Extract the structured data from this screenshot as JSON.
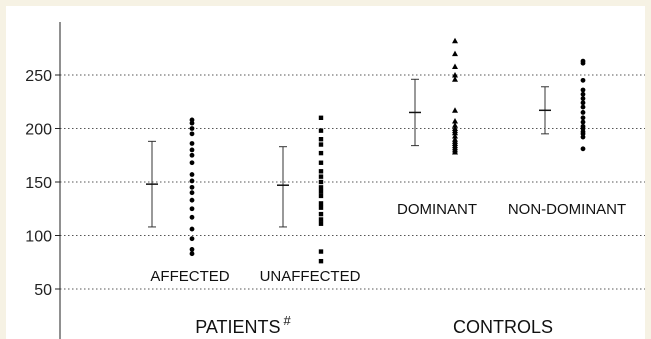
{
  "chart_data": {
    "type": "scatter",
    "title": "",
    "xlabel": "",
    "ylabel": "",
    "ylim": [
      20,
      295
    ],
    "yticks": [
      50,
      100,
      150,
      200,
      250
    ],
    "grid": true,
    "grid_style": "dotted horizontal",
    "panel_labels": [
      {
        "text": "PATIENTS",
        "superscript": "#"
      },
      {
        "text": "CONTROLS",
        "superscript": ""
      }
    ],
    "groups": [
      {
        "label": "AFFECTED",
        "panel": "PATIENTS",
        "mean": 148,
        "err_low": 108,
        "err_high": 188,
        "marker": "circle",
        "points": [
          208,
          205,
          200,
          195,
          186,
          180,
          175,
          168,
          157,
          151,
          145,
          140,
          133,
          125,
          117,
          106,
          97,
          87,
          83
        ]
      },
      {
        "label": "UNAFFECTED",
        "panel": "PATIENTS",
        "mean": 147,
        "err_low": 108,
        "err_high": 183,
        "marker": "square",
        "points": [
          210,
          198,
          190,
          185,
          177,
          168,
          160,
          155,
          150,
          145,
          141,
          137,
          130,
          126,
          120,
          115,
          111,
          85,
          76
        ]
      },
      {
        "label": "DOMINANT",
        "panel": "CONTROLS",
        "mean": 215,
        "err_low": 184,
        "err_high": 246,
        "marker": "triangle",
        "points": [
          282,
          270,
          258,
          250,
          246,
          217,
          207,
          203,
          200,
          198,
          196,
          193,
          190,
          188,
          186,
          184,
          182,
          180,
          178
        ]
      },
      {
        "label": "NON-DOMINANT",
        "panel": "CONTROLS",
        "mean": 217,
        "err_low": 195,
        "err_high": 239,
        "marker": "circle",
        "points": [
          263,
          261,
          245,
          236,
          232,
          228,
          224,
          220,
          215,
          210,
          206,
          202,
          200,
          197,
          195,
          192,
          181
        ]
      }
    ]
  }
}
